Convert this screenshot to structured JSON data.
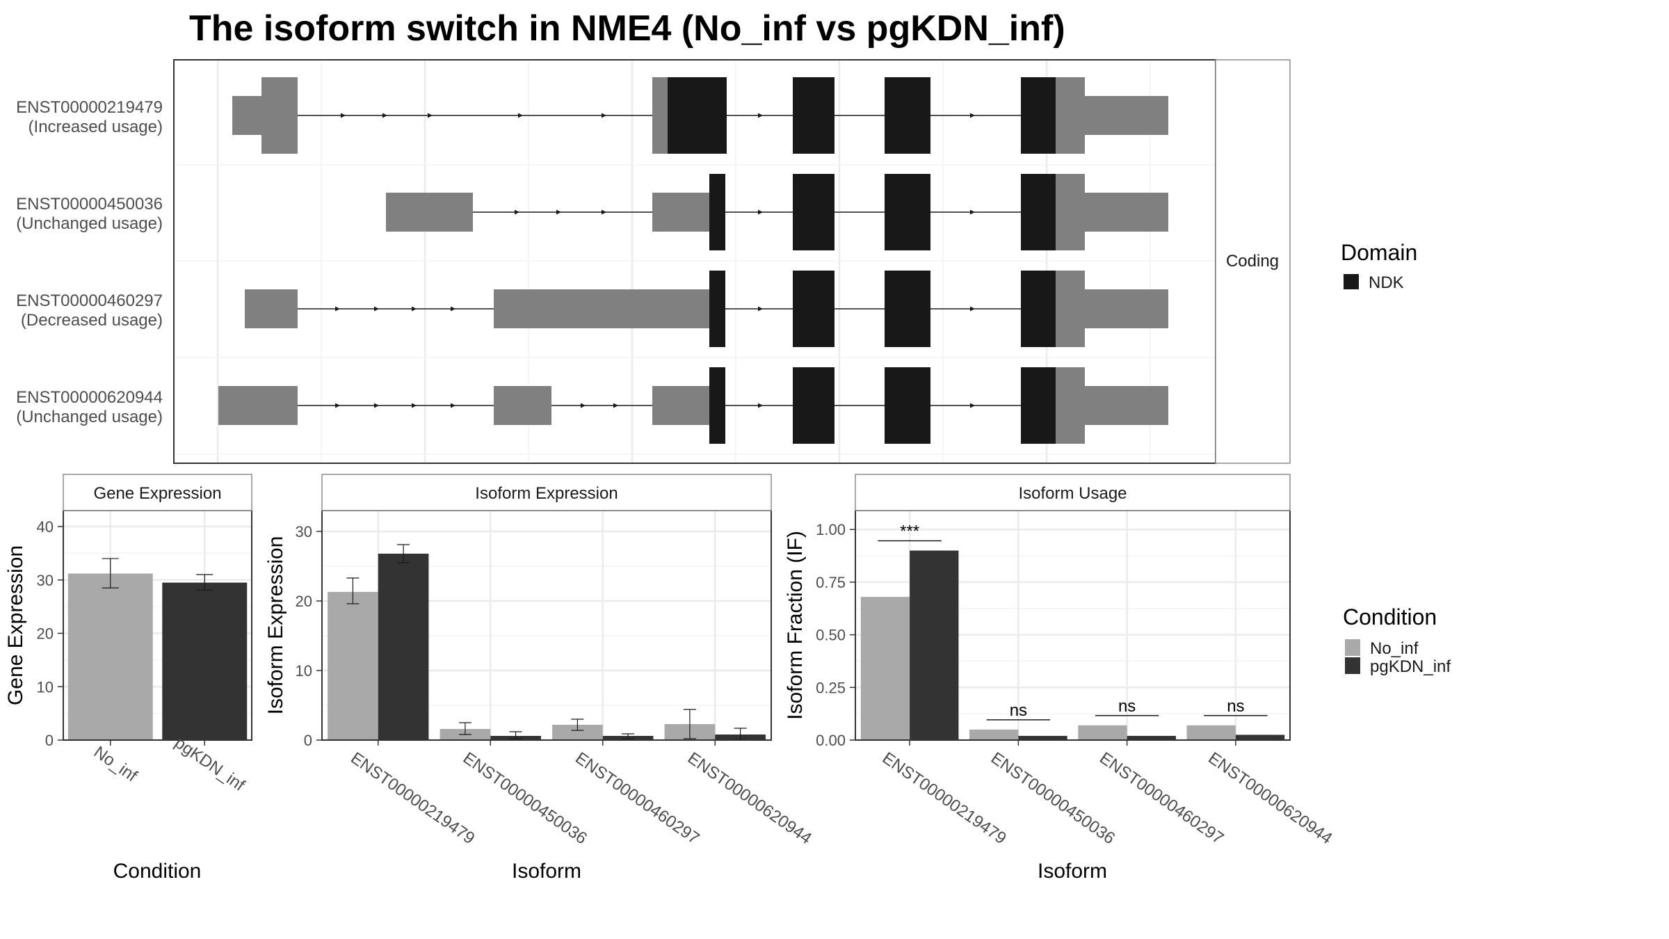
{
  "title": "The isoform switch in NME4 (No_inf vs pgKDN_inf)",
  "colors": {
    "no_inf": "#a9a9a9",
    "pgkdn_inf": "#333333",
    "utr": "#808080",
    "ndk": "#181818",
    "panel_border": "#333333",
    "grid": "#ebebeb",
    "strip_border": "#8c8c8c",
    "text": "#4d4d4d",
    "title": "#000000"
  },
  "transcripts": {
    "facet_label": "Coding",
    "rows": [
      {
        "id": "ENST00000219479",
        "usage": "(Increased usage)"
      },
      {
        "id": "ENST00000450036",
        "usage": "(Unchanged usage)"
      },
      {
        "id": "ENST00000460297",
        "usage": "(Decreased usage)"
      },
      {
        "id": "ENST00000620944",
        "usage": "(Unchanged usage)"
      }
    ]
  },
  "legends": {
    "domain": {
      "title": "Domain",
      "items": [
        {
          "label": "NDK"
        }
      ]
    },
    "condition": {
      "title": "Condition",
      "items": [
        {
          "label": "No_inf"
        },
        {
          "label": "pgKDN_inf"
        }
      ]
    }
  },
  "chart_data": [
    {
      "type": "bar",
      "title": "Gene Expression",
      "xlabel": "Condition",
      "ylabel": "Gene Expression",
      "ylim": [
        0,
        43
      ],
      "yticks": [
        0,
        10,
        20,
        30,
        40
      ],
      "categories": [
        "No_inf",
        "pgKDN_inf"
      ],
      "values": [
        31.2,
        29.5
      ],
      "error": [
        [
          28.5,
          34.0
        ],
        [
          28.1,
          31.0
        ]
      ],
      "grid": true
    },
    {
      "type": "bar",
      "title": "Isoform Expression",
      "xlabel": "Isoform",
      "ylabel": "Isoform Expression",
      "ylim": [
        0,
        33
      ],
      "yticks": [
        0,
        10,
        20,
        30
      ],
      "categories": [
        "ENST00000219479",
        "ENST00000450036",
        "ENST00000460297",
        "ENST00000620944"
      ],
      "series": [
        {
          "name": "No_inf",
          "values": [
            21.3,
            1.6,
            2.2,
            2.3
          ],
          "error": [
            [
              19.6,
              23.3
            ],
            [
              0.8,
              2.5
            ],
            [
              1.4,
              3.0
            ],
            [
              0.2,
              4.4
            ]
          ]
        },
        {
          "name": "pgKDN_inf",
          "values": [
            26.8,
            0.6,
            0.6,
            0.8
          ],
          "error": [
            [
              25.5,
              28.1
            ],
            [
              0.2,
              1.2
            ],
            [
              0.2,
              0.9
            ],
            [
              0.1,
              1.7
            ]
          ]
        }
      ],
      "grid": true
    },
    {
      "type": "bar",
      "title": "Isoform Usage",
      "xlabel": "Isoform",
      "ylabel": "Isoform Fraction (IF)",
      "ylim": [
        0,
        1.09
      ],
      "yticks": [
        "0.00",
        "0.25",
        "0.50",
        "0.75",
        "1.00"
      ],
      "categories": [
        "ENST00000219479",
        "ENST00000450036",
        "ENST00000460297",
        "ENST00000620944"
      ],
      "series": [
        {
          "name": "No_inf",
          "values": [
            0.68,
            0.05,
            0.07,
            0.07
          ]
        },
        {
          "name": "pgKDN_inf",
          "values": [
            0.9,
            0.02,
            0.02,
            0.025
          ]
        }
      ],
      "significance": [
        "***",
        "ns",
        "ns",
        "ns"
      ],
      "grid": true
    }
  ]
}
